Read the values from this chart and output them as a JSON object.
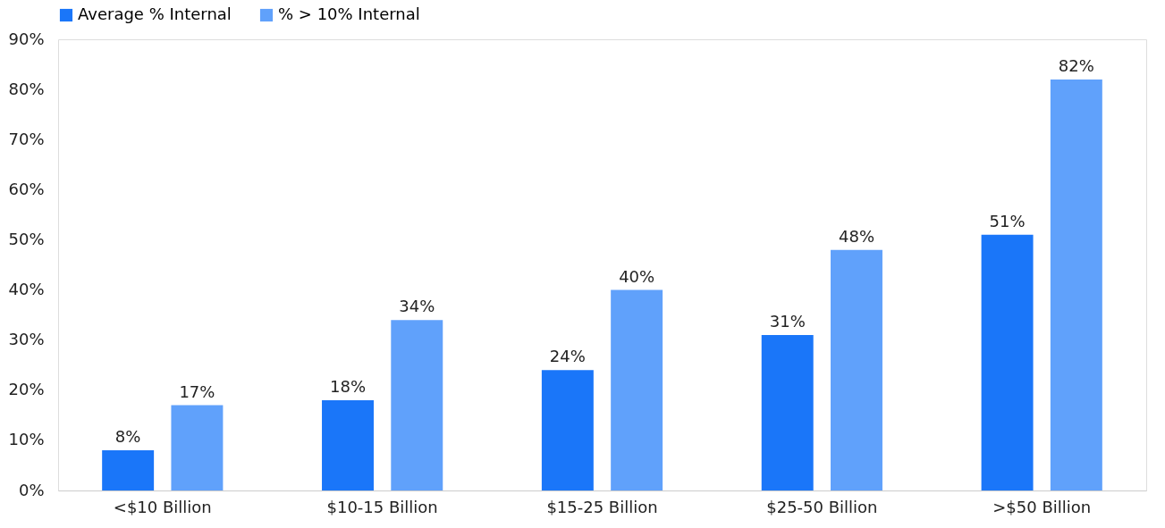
{
  "chart_data": {
    "type": "bar",
    "categories": [
      "<$10 Billion",
      "$10-15 Billion",
      "$15-25 Billion",
      "$25-50 Billion",
      ">$50 Billion"
    ],
    "series": [
      {
        "name": "Average % Internal",
        "color": "#1a76f9",
        "values": [
          8,
          18,
          24,
          31,
          51
        ],
        "value_labels": [
          "8%",
          "18%",
          "24%",
          "31%",
          "51%"
        ]
      },
      {
        "name": "% > 10% Internal",
        "color": "#60a1fb",
        "values": [
          17,
          34,
          40,
          48,
          82
        ],
        "value_labels": [
          "17%",
          "34%",
          "40%",
          "48%",
          "82%"
        ]
      }
    ],
    "ylim": [
      0,
      90
    ],
    "yticks": [
      {
        "value": 0,
        "label": "0%"
      },
      {
        "value": 10,
        "label": "10%"
      },
      {
        "value": 20,
        "label": "20%"
      },
      {
        "value": 30,
        "label": "30%"
      },
      {
        "value": 40,
        "label": "40%"
      },
      {
        "value": 50,
        "label": "50%"
      },
      {
        "value": 60,
        "label": "60%"
      },
      {
        "value": 70,
        "label": "70%"
      },
      {
        "value": 80,
        "label": "80%"
      },
      {
        "value": 90,
        "label": "90%"
      }
    ],
    "grid": false,
    "legend": "top"
  }
}
